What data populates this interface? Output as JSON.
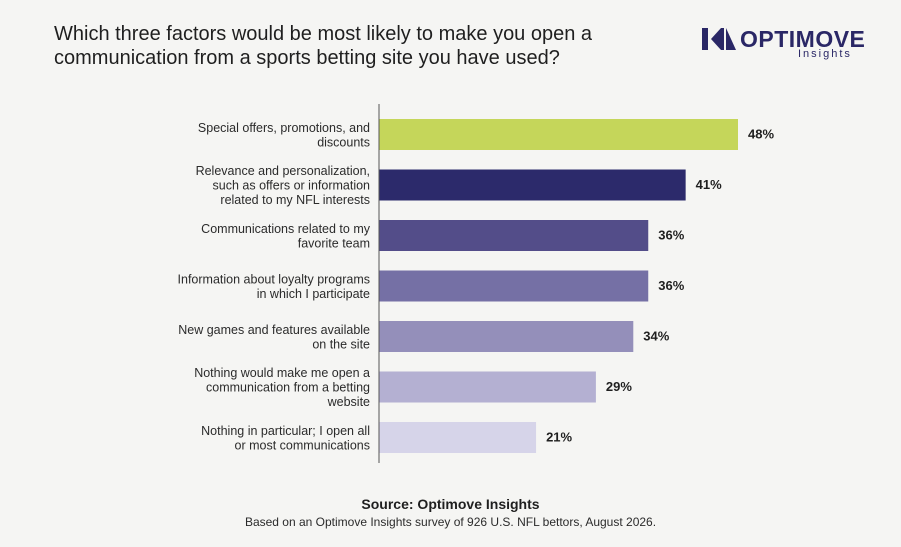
{
  "title": "Which three factors would be most likely to make you open a communication from a sports betting site you have used?",
  "brand": {
    "name": "OPTIMOVE",
    "sub": "Insights"
  },
  "chart_data": {
    "type": "bar",
    "orientation": "horizontal",
    "categories": [
      [
        "Special offers, promotions, and",
        "discounts"
      ],
      [
        "Relevance and personalization,",
        "such as offers or information",
        "related to my NFL interests"
      ],
      [
        "Communications related to my",
        "favorite team"
      ],
      [
        "Information about loyalty programs",
        "in which I participate"
      ],
      [
        "New games and features available",
        "on the site"
      ],
      [
        "Nothing would make me open a",
        "communication from a betting",
        "website"
      ],
      [
        "Nothing in particular; I open all",
        "or most communications"
      ]
    ],
    "values": [
      48,
      41,
      36,
      36,
      34,
      29,
      21
    ],
    "value_labels": [
      "48%",
      "41%",
      "36%",
      "36%",
      "34%",
      "29%",
      "21%"
    ],
    "colors": [
      "#c5d65a",
      "#2c2a6b",
      "#534d89",
      "#7570a5",
      "#948fba",
      "#b4b0d2",
      "#d6d4e9"
    ],
    "xlim": [
      0,
      48
    ],
    "grid": false,
    "legend": "none"
  },
  "source": "Source: Optimove Insights",
  "note": "Based on an Optimove Insights survey of 926 U.S. NFL bettors, August 2026."
}
